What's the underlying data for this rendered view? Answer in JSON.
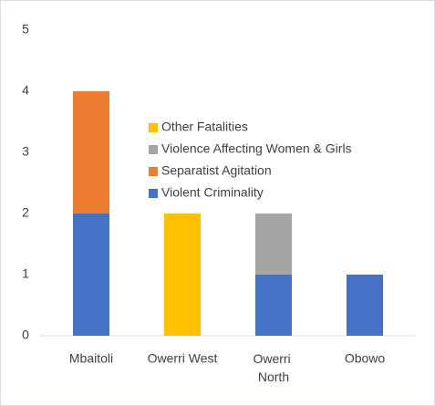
{
  "chart_data": {
    "type": "stacked_bar",
    "categories": [
      "Mbaitoli",
      "Owerri West",
      "Owerri North",
      "Obowo"
    ],
    "series": [
      {
        "name": "Violent Criminality",
        "color": "#4472c4",
        "values": [
          2,
          0,
          1,
          1
        ]
      },
      {
        "name": "Separatist Agitation",
        "color": "#ed7d31",
        "values": [
          2,
          0,
          0,
          0
        ]
      },
      {
        "name": "Violence Affecting Women & Girls",
        "color": "#a5a5a5",
        "values": [
          0,
          0,
          1,
          0
        ]
      },
      {
        "name": "Other Fatalities",
        "color": "#ffc000",
        "values": [
          0,
          2,
          0,
          0
        ]
      }
    ],
    "ylim": [
      0,
      5
    ],
    "yticks": [
      0,
      1,
      2,
      3,
      4,
      5
    ],
    "grid": false
  }
}
